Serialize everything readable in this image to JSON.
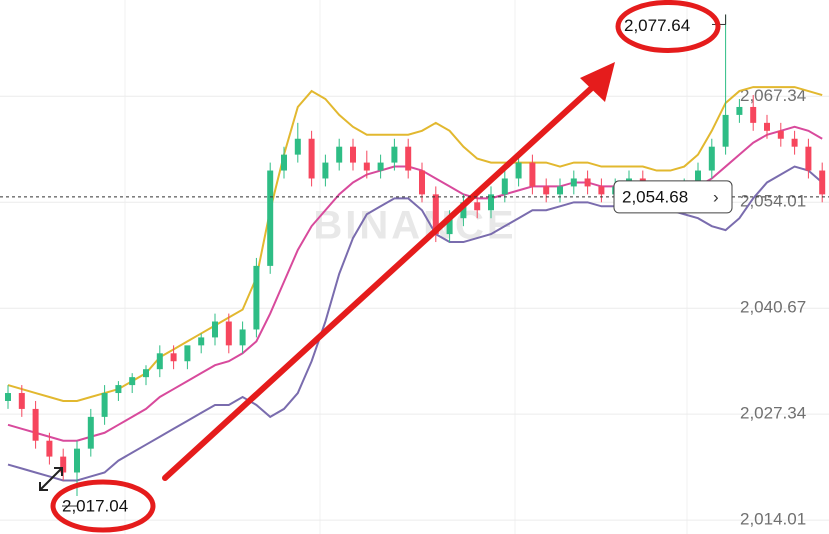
{
  "chart_data": {
    "type": "candlestick",
    "watermark": "BINANCE",
    "ylim": [
      2012.26,
      2079.46
    ],
    "yticks": [
      {
        "value": 2067.34,
        "label": "2,067.34"
      },
      {
        "value": 2054.01,
        "label": "2,054.01"
      },
      {
        "value": 2040.67,
        "label": "2,040.67"
      },
      {
        "value": 2027.34,
        "label": "2,027.34"
      },
      {
        "value": 2014.01,
        "label": "2,014.01"
      }
    ],
    "grid": true,
    "up_color": "#2ebd85",
    "down_color": "#f6465d",
    "open": [
      2029,
      2030,
      2028,
      2024,
      2022,
      2020,
      2023,
      2027,
      2030,
      2031,
      2032,
      2033,
      2035,
      2034,
      2036,
      2037,
      2039,
      2036,
      2038,
      2046,
      2058,
      2060,
      2062,
      2057,
      2059,
      2061,
      2059,
      2058,
      2059,
      2061,
      2058,
      2055,
      2050,
      2052,
      2054,
      2053,
      2055,
      2057,
      2059,
      2056,
      2055,
      2056,
      2057,
      2056,
      2055,
      2056,
      2057,
      2055,
      2054,
      2054,
      2056,
      2058,
      2061,
      2065,
      2066,
      2064,
      2063,
      2062,
      2061,
      2058
    ],
    "high": [
      2031,
      2031,
      2029,
      2025,
      2023,
      2024,
      2028,
      2031,
      2031.5,
      2032.5,
      2033.5,
      2036,
      2036,
      2035.5,
      2037.5,
      2040,
      2040,
      2039,
      2047,
      2059,
      2061,
      2064,
      2063,
      2060,
      2062,
      2062,
      2060.5,
      2060,
      2062,
      2062,
      2059,
      2056,
      2053,
      2055,
      2055,
      2056,
      2058,
      2060,
      2060,
      2057,
      2057,
      2058,
      2058,
      2057,
      2057,
      2058,
      2058,
      2056,
      2055.5,
      2057,
      2059,
      2062,
      2077.64,
      2067,
      2067.5,
      2065,
      2064,
      2063,
      2062,
      2059
    ],
    "low": [
      2028,
      2027,
      2023,
      2021,
      2019,
      2017.04,
      2022,
      2026,
      2029,
      2030,
      2031,
      2032,
      2033,
      2033,
      2035,
      2036,
      2035,
      2035,
      2037,
      2045,
      2057,
      2059,
      2056,
      2056,
      2058,
      2058,
      2057,
      2057,
      2058,
      2057,
      2054,
      2049,
      2049,
      2051,
      2052,
      2052,
      2054,
      2056,
      2055,
      2054,
      2054,
      2055,
      2055,
      2054,
      2054,
      2055,
      2054,
      2053,
      2053,
      2053,
      2055,
      2057,
      2060,
      2064,
      2063,
      2062,
      2061,
      2060,
      2057,
      2054
    ],
    "close": [
      2030,
      2028,
      2024,
      2022,
      2020,
      2023,
      2027,
      2030,
      2031,
      2032,
      2033,
      2035,
      2034,
      2036,
      2037,
      2039,
      2036,
      2038,
      2046,
      2058,
      2060,
      2062,
      2057,
      2059,
      2061,
      2059,
      2058,
      2059,
      2061,
      2058,
      2055,
      2050,
      2052,
      2054,
      2053,
      2055,
      2057,
      2059,
      2056,
      2055,
      2056,
      2057,
      2056,
      2055,
      2056,
      2057,
      2055,
      2054,
      2054,
      2056,
      2058,
      2061,
      2065,
      2066,
      2064,
      2063,
      2062,
      2061,
      2058,
      2055
    ],
    "series": [
      {
        "color": "#e2b82f",
        "values": [
          2031,
          2030.5,
          2030,
          2029.5,
          2029,
          2029,
          2029.5,
          2030,
          2030.5,
          2031.5,
          2032.5,
          2034.5,
          2035.5,
          2036.5,
          2037.5,
          2038.5,
          2039.5,
          2040.5,
          2044.5,
          2053,
          2060,
          2066,
          2068,
          2067,
          2065,
          2063.5,
          2062.5,
          2062.5,
          2062.5,
          2062.5,
          2063,
          2064,
          2063,
          2061,
          2059.5,
          2059,
          2059,
          2059,
          2059,
          2059,
          2058.5,
          2059,
          2059,
          2058.5,
          2058.5,
          2058.5,
          2058.5,
          2058,
          2058,
          2058.5,
          2060,
          2063,
          2066.5,
          2068,
          2068.5,
          2068.5,
          2068.5,
          2068.5,
          2068,
          2067.5
        ]
      },
      {
        "color": "#d84a9c",
        "values": [
          2026,
          2025.5,
          2025,
          2024.5,
          2024,
          2024,
          2024.5,
          2025,
          2026,
          2027,
          2028,
          2029.5,
          2030.5,
          2031.5,
          2032.5,
          2033.5,
          2034,
          2035,
          2036.5,
          2040,
          2044,
          2048,
          2051,
          2053,
          2055,
          2056.5,
          2057.5,
          2058,
          2058.5,
          2058.5,
          2058,
          2057,
          2056,
          2055,
          2054.5,
          2054.5,
          2055,
          2055.5,
          2056,
          2056,
          2056,
          2056.5,
          2056.5,
          2056,
          2056,
          2056,
          2056,
          2055.5,
          2055.5,
          2055.5,
          2056,
          2057,
          2058.5,
          2060,
          2061.5,
          2062.5,
          2063,
          2063.5,
          2063,
          2062
        ]
      },
      {
        "color": "#7a6cae",
        "values": [
          2021,
          2020.5,
          2020,
          2019.5,
          2019,
          2019,
          2019.5,
          2020,
          2021.5,
          2022.5,
          2023.5,
          2024.5,
          2025.5,
          2026.5,
          2027.5,
          2028.5,
          2028.5,
          2029.5,
          2028.5,
          2027,
          2028,
          2030,
          2034,
          2039,
          2045,
          2049.5,
          2052.5,
          2053.5,
          2054.5,
          2054.5,
          2053,
          2050,
          2049,
          2049,
          2049.5,
          2050,
          2051,
          2052,
          2053,
          2053,
          2053.5,
          2054,
          2054,
          2053.5,
          2053.5,
          2053.5,
          2053.5,
          2053,
          2053,
          2052.5,
          2052,
          2051,
          2050.5,
          2052,
          2054.5,
          2056.5,
          2057.5,
          2058.5,
          2058,
          2056.5
        ]
      }
    ],
    "high_annotation": {
      "value": 2077.64,
      "label": "2,077.64"
    },
    "low_annotation": {
      "value": 2017.04,
      "label": "2,017.04"
    },
    "current_price": {
      "value": 2054.68,
      "label": "2,054.68"
    }
  }
}
